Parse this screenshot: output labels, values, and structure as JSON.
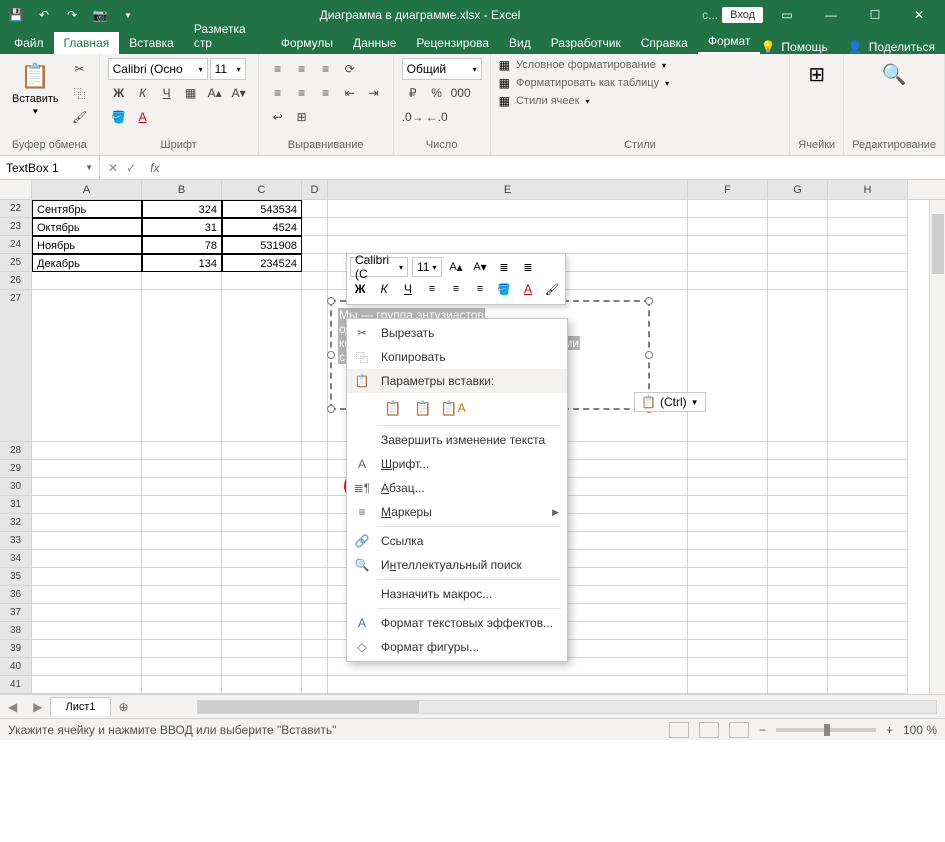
{
  "titlebar": {
    "filename": "Диаграмма в диаграмме.xlsx  -  Excel",
    "login": "Вход"
  },
  "tabs": {
    "file": "Файл",
    "home": "Главная",
    "insert": "Вставка",
    "layout": "Разметка стр",
    "formulas": "Формулы",
    "data": "Данные",
    "review": "Рецензирова",
    "view": "Вид",
    "developer": "Разработчик",
    "help": "Справка",
    "format": "Формат",
    "tellme": "Помощь",
    "share": "Поделиться"
  },
  "ribbon": {
    "clipboard": {
      "paste": "Вставить",
      "label": "Буфер обмена"
    },
    "font": {
      "name": "Calibri (Осно",
      "size": "11",
      "label": "Шрифт"
    },
    "alignment": {
      "label": "Выравнивание"
    },
    "number": {
      "format": "Общий",
      "label": "Число"
    },
    "styles": {
      "cond": "Условное форматирование",
      "table": "Форматировать как таблицу",
      "cell": "Стили ячеек",
      "label": "Стили"
    },
    "cells": {
      "label": "Ячейки"
    },
    "editing": {
      "label": "Редактирование"
    }
  },
  "namebox": "TextBox 1",
  "grid": {
    "rows": [
      {
        "n": 22,
        "a": "Сентябрь",
        "b": "324",
        "c": "543534"
      },
      {
        "n": 23,
        "a": "Октябрь",
        "b": "31",
        "c": "4524"
      },
      {
        "n": 24,
        "a": "Ноябрь",
        "b": "78",
        "c": "531908"
      },
      {
        "n": 25,
        "a": "Декабрь",
        "b": "134",
        "c": "234524"
      }
    ],
    "textbox_text1": "Мы — группа энтузиастов",
    "textbox_text2": "едневном",
    "textbox_text3": "ко",
    "textbox_text4": "йствами",
    "textbox_text5": "с н"
  },
  "minitoolbar": {
    "font": "Calibri (С",
    "size": "11"
  },
  "ctx": {
    "cut": "Вырезать",
    "copy": "Копировать",
    "paste_opts": "Параметры вставки:",
    "finish_edit": "Завершить изменение текста",
    "font": "Шрифт...",
    "paragraph": "Абзац...",
    "bullets": "Маркеры",
    "link": "Ссылка",
    "smart_lookup": "Интеллектуальный поиск",
    "macro": "Назначить макрос...",
    "text_fx": "Формат текстовых эффектов...",
    "shape_fmt": "Формат фигуры..."
  },
  "paste_badge": "(Ctrl)",
  "sheet": {
    "name": "Лист1"
  },
  "statusbar": {
    "msg": "Укажите ячейку и нажмите ВВОД или выберите \"Вставить\"",
    "zoom": "100 %"
  },
  "colors": {
    "brand": "#217346",
    "highlight": "#e21b1b"
  }
}
